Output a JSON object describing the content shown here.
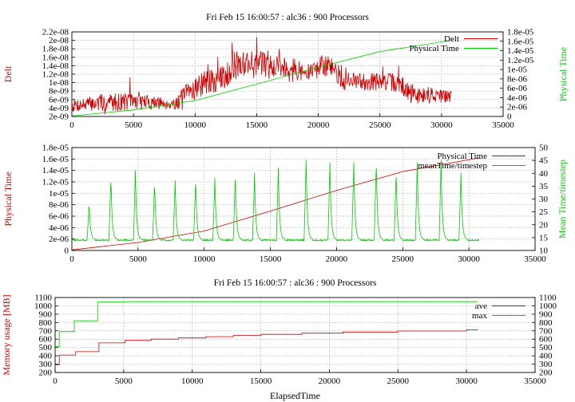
{
  "chart_data": [
    {
      "type": "line",
      "title": "Fri Feb 15 16:00:57 : alc36 : 900 Processors",
      "xlabel": "",
      "ylabel": "Delt",
      "y2label": "Physical Time",
      "xlim": [
        0,
        35000
      ],
      "ylim": [
        2e-09,
        2.2e-08
      ],
      "y2lim": [
        0,
        1.8e-05
      ],
      "xticks": [
        "0",
        "5000",
        "10000",
        "15000",
        "20000",
        "25000",
        "30000",
        "35000"
      ],
      "yticks": [
        "2e-09",
        "4e-09",
        "6e-09",
        "8e-09",
        "1e-08",
        "1.2e-08",
        "1.4e-08",
        "1.6e-08",
        "1.8e-08",
        "2e-08",
        "2.2e-08"
      ],
      "y2ticks": [
        "0",
        "2e-06",
        "4e-06",
        "6e-06",
        "8e-06",
        "1e-05",
        "1.2e-05",
        "1.4e-05",
        "1.6e-05",
        "1.8e-05"
      ],
      "grid": true,
      "legend_position": "top-right",
      "series": [
        {
          "name": "Delt",
          "color": "#cc0000",
          "axis": "y",
          "style": "noisy",
          "seed": 7,
          "x": [
            0,
            1500,
            3000,
            5000,
            7000,
            8500,
            9000,
            10000,
            11000,
            12000,
            13000,
            14000,
            15000,
            16000,
            17000,
            18000,
            19000,
            20000,
            21000,
            22000,
            23000,
            24000,
            25000,
            26000,
            27000,
            28000,
            29000,
            30000,
            30800
          ],
          "y": [
            4.6e-09,
            5e-09,
            5.4e-09,
            5.6e-09,
            5.2e-09,
            5e-09,
            6.5e-09,
            9e-09,
            9.8e-09,
            1.05e-08,
            1.35e-08,
            1.5e-08,
            1.42e-08,
            1.46e-08,
            1.38e-08,
            1.34e-08,
            1.2e-08,
            1.36e-08,
            1.4e-08,
            1.05e-08,
            1.02e-08,
            1.05e-08,
            1e-08,
            1.02e-08,
            8.5e-09,
            7e-09,
            7.2e-09,
            6.8e-09,
            6.5e-09
          ],
          "noise": [
            1.6e-09,
            1.8e-09,
            2.2e-09,
            2.2e-09,
            1.5e-09,
            1.5e-09,
            2.5e-09,
            3e-09,
            3e-09,
            3e-09,
            3.5e-09,
            3.5e-09,
            3.5e-09,
            3e-09,
            3e-09,
            2.5e-09,
            2e-09,
            2.5e-09,
            2.5e-09,
            2.5e-09,
            2e-09,
            2.5e-09,
            2e-09,
            2.2e-09,
            2.5e-09,
            2e-09,
            2e-09,
            2e-09,
            1.5e-09
          ],
          "step": 40
        },
        {
          "name": "Physical Time",
          "color": "#00cc00",
          "axis": "y2",
          "style": "line",
          "x": [
            0,
            5000,
            10000,
            15000,
            20000,
            25000,
            30800
          ],
          "y": [
            1e-07,
            1.4e-06,
            3.4e-06,
            6.9e-06,
            1.05e-05,
            1.38e-05,
            1.62e-05
          ]
        }
      ]
    },
    {
      "type": "line",
      "title": "",
      "xlabel": "",
      "ylabel": "Physical Time",
      "y2label": "Mean Time/timestep",
      "xlim": [
        0,
        35000
      ],
      "ylim": [
        0,
        1.8e-05
      ],
      "y2lim": [
        10,
        50
      ],
      "xticks": [
        "0",
        "5000",
        "10000",
        "15000",
        "20000",
        "25000",
        "30000",
        "35000"
      ],
      "yticks": [
        "0",
        "2e-06",
        "4e-06",
        "6e-06",
        "8e-06",
        "1e-05",
        "1.2e-05",
        "1.4e-05",
        "1.6e-05",
        "1.8e-05"
      ],
      "y2ticks": [
        "10",
        "15",
        "20",
        "25",
        "30",
        "35",
        "40",
        "45",
        "50"
      ],
      "grid": true,
      "legend_position": "top-right",
      "series": [
        {
          "name": "Physical Time",
          "color": "#cc0000",
          "axis": "y",
          "style": "line",
          "x": [
            0,
            5000,
            10000,
            15000,
            20000,
            25000,
            30800
          ],
          "y": [
            1e-07,
            1.4e-06,
            3.4e-06,
            6.9e-06,
            1.05e-05,
            1.38e-05,
            1.62e-05
          ]
        },
        {
          "name": "meanTime/timestep",
          "color": "#00cc00",
          "axis": "y2",
          "style": "spikes",
          "seed": 3,
          "xmin": 0,
          "xmax": 30800,
          "base": 14,
          "spike_x": [
            1300,
            2950,
            4800,
            6250,
            7800,
            9350,
            10800,
            12350,
            13800,
            15600,
            17700,
            19500,
            21300,
            23000,
            24500,
            26100,
            27900,
            29400
          ],
          "spike_y": [
            28,
            38,
            40,
            36,
            36,
            37,
            37,
            39,
            39,
            41,
            44,
            43,
            43,
            44,
            40,
            43,
            44,
            39
          ]
        }
      ]
    },
    {
      "type": "line",
      "title": "Fri Feb 15 16:00:57 : alc36 : 900 Processors",
      "xlabel": "ElapsedTime",
      "ylabel": "Memory usage [MB]",
      "xlim": [
        0,
        35000
      ],
      "ylim": [
        200,
        1100
      ],
      "y2lim": [
        200,
        1100
      ],
      "xticks": [
        "0",
        "5000",
        "10000",
        "15000",
        "20000",
        "25000",
        "30000",
        "35000"
      ],
      "yticks": [
        "200",
        "300",
        "400",
        "500",
        "600",
        "700",
        "800",
        "900",
        "1000",
        "1100"
      ],
      "y2ticks": [
        "200",
        "300",
        "400",
        "500",
        "600",
        "700",
        "800",
        "900",
        "1000",
        "1100"
      ],
      "grid": true,
      "legend_position": "top-right",
      "series": [
        {
          "name": "ave",
          "color": "#cc0000",
          "axis": "y",
          "style": "step",
          "x": [
            0,
            300,
            1300,
            1500,
            3000,
            3200,
            4800,
            5100,
            7000,
            9000,
            11000,
            13000,
            15000,
            18000,
            21000,
            25000,
            30000,
            30800
          ],
          "y": [
            290,
            410,
            410,
            450,
            450,
            555,
            555,
            585,
            600,
            615,
            630,
            645,
            658,
            672,
            685,
            698,
            712,
            715
          ]
        },
        {
          "name": "max",
          "color": "#00cc00",
          "axis": "y",
          "style": "step",
          "x": [
            0,
            300,
            1300,
            1400,
            2900,
            3100,
            5000,
            10000,
            20000,
            30800
          ],
          "y": [
            510,
            690,
            690,
            820,
            820,
            1045,
            1050,
            1050,
            1050,
            1050
          ]
        }
      ]
    }
  ]
}
